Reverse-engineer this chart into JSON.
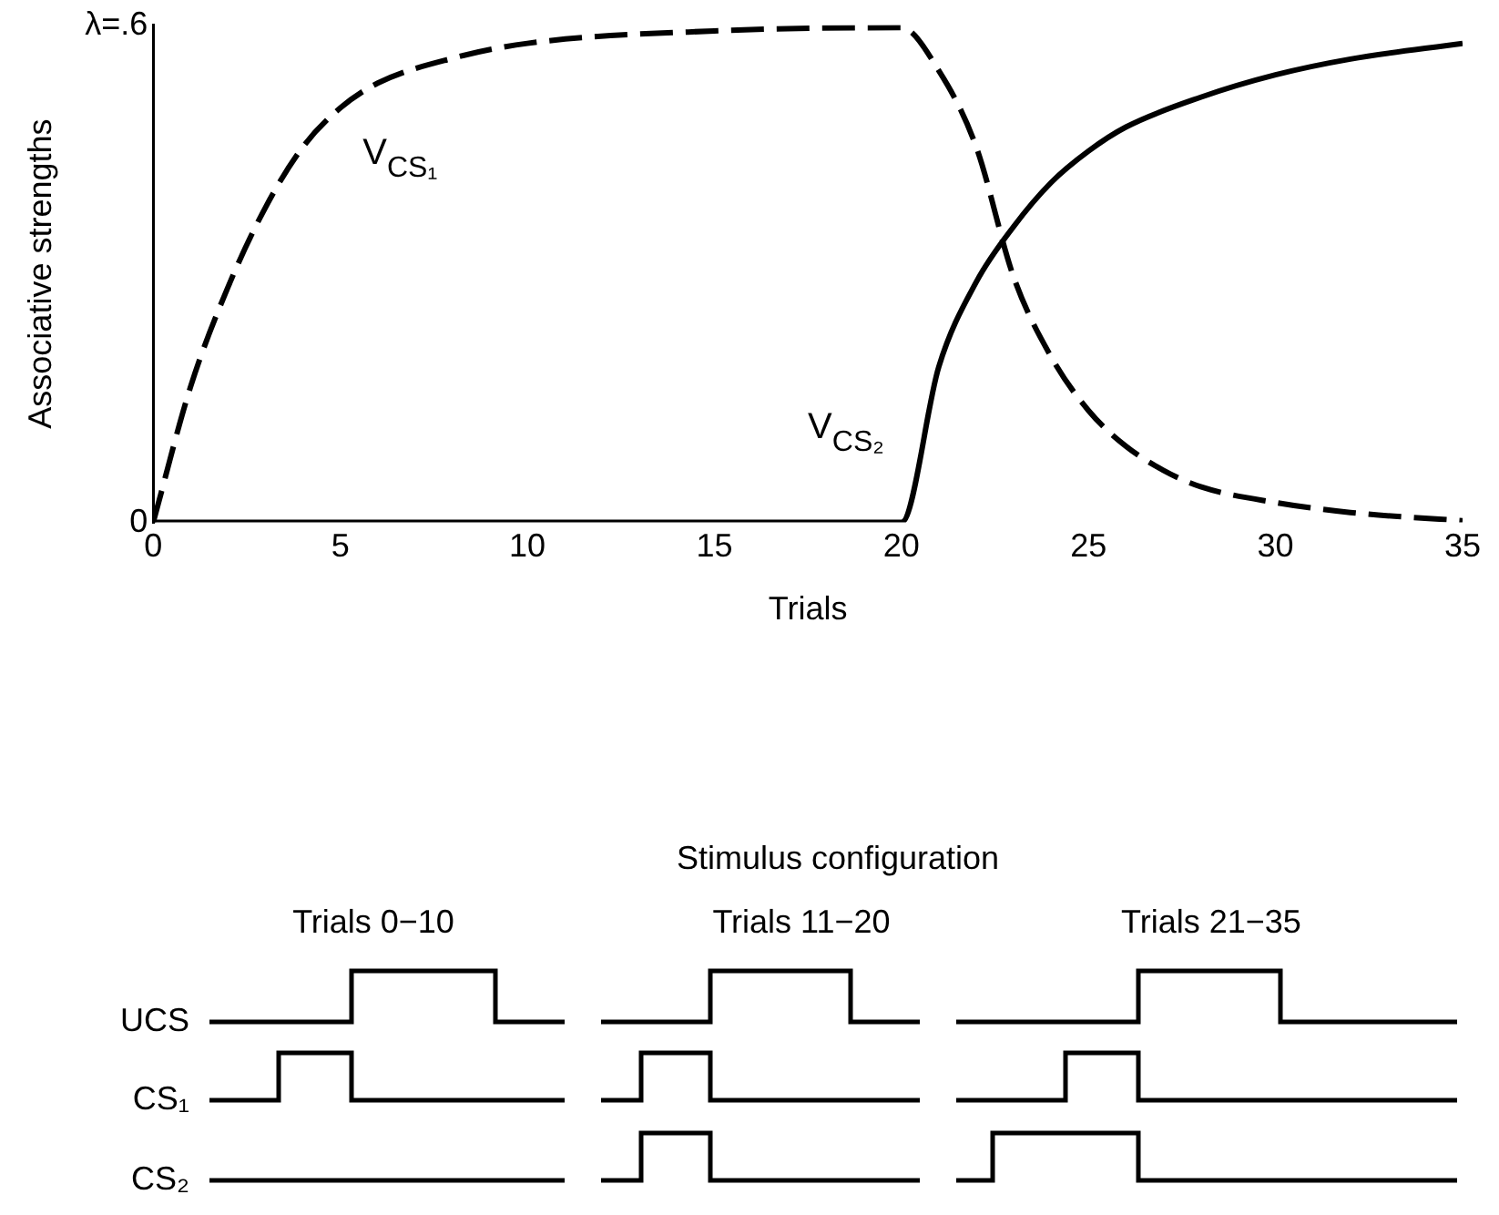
{
  "chart_data": {
    "type": "line",
    "xlabel": "Trials",
    "ylabel": "Associative strengths",
    "xlim": [
      0,
      35
    ],
    "xticks": [
      0,
      5,
      10,
      15,
      20,
      25,
      30,
      35
    ],
    "ylim": [
      0,
      0.6
    ],
    "yticks": [
      0,
      {
        "value": 0.6,
        "label": "λ=.6"
      }
    ],
    "grid": false,
    "legend": false,
    "marker": "none",
    "series": [
      {
        "name": "V$_{CS₁}$",
        "color": "#000000",
        "line_style": "dashed",
        "x": [
          0,
          1,
          2,
          3,
          4,
          5,
          6,
          8,
          10,
          15,
          20,
          21,
          22,
          23,
          24,
          25,
          26,
          27,
          28,
          30,
          32,
          35
        ],
        "values": [
          0,
          0.164,
          0.284,
          0.38,
          0.453,
          0.5,
          0.53,
          0.56,
          0.578,
          0.593,
          0.597,
          0.545,
          0.453,
          0.296,
          0.2,
          0.135,
          0.092,
          0.063,
          0.043,
          0.024,
          0.012,
          0.002
        ]
      },
      {
        "name": "V$_{CS₂}$",
        "color": "#000000",
        "line_style": "solid",
        "x": [
          0,
          20,
          21,
          22,
          23,
          24,
          25,
          26,
          28,
          30,
          32,
          35
        ],
        "values": [
          0,
          0,
          0.188,
          0.29,
          0.357,
          0.41,
          0.448,
          0.477,
          0.513,
          0.54,
          0.559,
          0.578
        ]
      }
    ],
    "annotations": [
      "Stimulus configuration",
      "Trials 0−10",
      "Trials 11−20",
      "Trials 21−35",
      "UCS",
      "CS₁",
      "CS₂"
    ]
  }
}
